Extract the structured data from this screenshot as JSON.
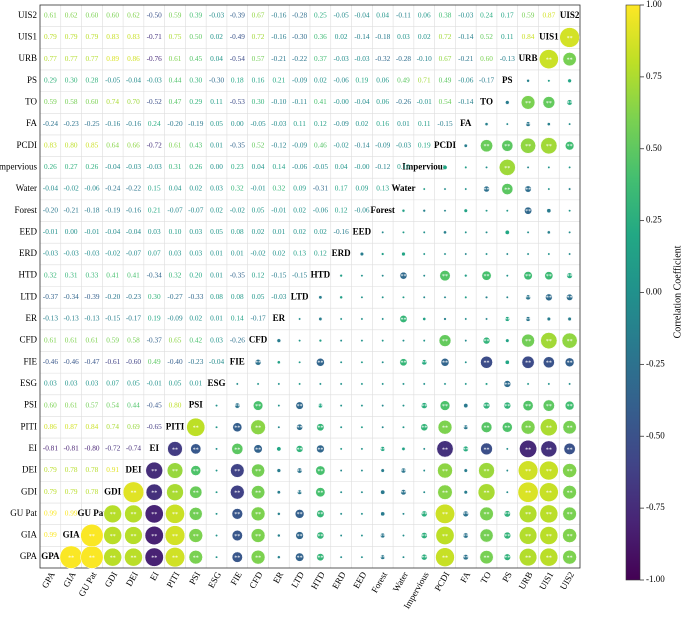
{
  "chart_data": {
    "type": "correlation_matrix",
    "variables": [
      "GPA",
      "GIA",
      "GU Pat",
      "GDI",
      "DEI",
      "EI",
      "PITI",
      "PSI",
      "ESG",
      "FIE",
      "CFD",
      "ER",
      "LTD",
      "HTD",
      "ERD",
      "EED",
      "Forest",
      "Water",
      "Impervious",
      "PCDI",
      "FA",
      "TO",
      "PS",
      "URB",
      "UIS1",
      "UIS2"
    ],
    "rows": [
      [],
      [
        0.99
      ],
      [
        0.99,
        0.99
      ],
      [
        0.79,
        0.79,
        0.78
      ],
      [
        0.79,
        0.78,
        0.78,
        0.91
      ],
      [
        -0.81,
        -0.81,
        -0.8,
        -0.72,
        -0.74
      ],
      [
        0.86,
        0.87,
        0.84,
        0.74,
        0.69,
        -0.65
      ],
      [
        0.6,
        0.61,
        0.57,
        0.54,
        0.44,
        -0.45,
        0.8
      ],
      [
        0.03,
        0.03,
        0.03,
        0.07,
        0.05,
        -0.01,
        0.05,
        0.01
      ],
      [
        -0.46,
        -0.46,
        -0.47,
        -0.61,
        -0.6,
        0.49,
        -0.4,
        -0.23,
        -0.04
      ],
      [
        0.61,
        0.61,
        0.61,
        0.59,
        0.58,
        -0.37,
        0.65,
        0.42,
        0.03,
        -0.26
      ],
      [
        -0.13,
        -0.13,
        -0.13,
        -0.15,
        -0.17,
        0.19,
        -0.09,
        0.02,
        0.01,
        0.14,
        -0.17
      ],
      [
        -0.37,
        -0.34,
        -0.39,
        -0.2,
        -0.23,
        0.3,
        -0.27,
        -0.33,
        0.08,
        0.08,
        0.05,
        -0.03
      ],
      [
        0.32,
        0.31,
        0.33,
        0.41,
        0.41,
        -0.34,
        0.32,
        0.2,
        0.01,
        -0.35,
        0.12,
        -0.15,
        -0.15
      ],
      [
        -0.03,
        -0.03,
        -0.03,
        -0.02,
        -0.07,
        0.07,
        0.03,
        0.03,
        0.01,
        0.01,
        -0.02,
        0.02,
        0.13,
        0.12
      ],
      [
        -0.01,
        0.0,
        -0.01,
        -0.04,
        -0.04,
        0.03,
        0.1,
        0.03,
        0.05,
        0.08,
        0.02,
        0.01,
        0.02,
        0.02,
        -0.16
      ],
      [
        -0.2,
        -0.21,
        -0.18,
        -0.19,
        -0.16,
        0.21,
        -0.07,
        -0.07,
        0.02,
        -0.02,
        0.05,
        -0.01,
        0.02,
        -0.06,
        0.12,
        -0.06
      ],
      [
        -0.04,
        -0.02,
        -0.06,
        -0.24,
        -0.22,
        0.15,
        0.04,
        0.02,
        0.03,
        0.32,
        -0.01,
        0.32,
        0.09,
        -0.31,
        0.17,
        0.09,
        0.13
      ],
      [
        0.26,
        0.27,
        0.26,
        -0.04,
        -0.03,
        -0.03,
        0.31,
        0.26,
        0.0,
        0.23,
        0.04,
        0.14,
        -0.06,
        -0.05,
        0.04,
        0,
        -0.12,
        0.1
      ],
      [
        0.83,
        0.8,
        0.85,
        0.64,
        0.66,
        -0.72,
        0.61,
        0.43,
        0.01,
        -0.35,
        0.52,
        -0.12,
        -0.09,
        0.46,
        -0.02,
        -0.14,
        -0.09,
        -0.03,
        0.19
      ],
      [
        -0.24,
        -0.23,
        -0.25,
        -0.16,
        -0.16,
        0.24,
        -0.2,
        -0.19,
        0.05,
        0.0,
        -0.05,
        -0.03,
        0.11,
        0.12,
        -0.09,
        0.02,
        0.16,
        0.01,
        0.11,
        -0.15
      ],
      [
        0.59,
        0.58,
        0.6,
        0.74,
        0.7,
        -0.52,
        0.47,
        0.29,
        0.11,
        -0.53,
        0.3,
        -0.1,
        -0.11,
        0.41,
        0,
        -0.04,
        0.06,
        -0.26,
        -0.01,
        0.54,
        -0.14
      ],
      [
        0.29,
        0.3,
        0.28,
        -0.05,
        -0.04,
        -0.03,
        0.44,
        0.3,
        -0.3,
        0.18,
        0.16,
        0.21,
        -0.09,
        0.02,
        -0.06,
        0.19,
        0.06,
        0.49,
        0.71,
        0.49,
        -0.06,
        -0.17
      ],
      [
        0.77,
        0.77,
        0.77,
        0.89,
        0.86,
        -0.76,
        0.61,
        0.45,
        0.04,
        -0.54,
        0.57,
        -0.21,
        -0.22,
        0.37,
        -0.03,
        -0.03,
        -0.32,
        -0.28,
        -0.1,
        0.67,
        -0.21,
        0.6,
        -0.13
      ],
      [
        0.79,
        0.79,
        0.79,
        0.83,
        0.83,
        -0.71,
        0.75,
        0.5,
        0.02,
        -0.49,
        0.72,
        -0.16,
        -0.3,
        0.36,
        0.02,
        -0.14,
        -0.18,
        0.03,
        0.02,
        0.72,
        -0.14,
        0.52,
        0.11,
        0.84
      ],
      [
        0.61,
        0.62,
        0.6,
        0.6,
        0.62,
        -0.5,
        0.59,
        0.39,
        -0.03,
        -0.39,
        0.67,
        -0.16,
        -0.28,
        0.25,
        -0.05,
        -0.04,
        0.04,
        -0.11,
        0.06,
        0.38,
        -0.03,
        0.24,
        0.17,
        0.59,
        0.87
      ]
    ],
    "value_labels": [
      [],
      [
        "0.99"
      ],
      [
        "0.99",
        "0.99"
      ],
      [
        "0.79",
        "0.79",
        "0.78"
      ],
      [
        "0.79",
        "0.78",
        "0.78",
        "0.91"
      ],
      [
        "-0.81",
        "-0.81",
        "-0.80",
        "-0.72",
        "-0.74"
      ],
      [
        "0.86",
        "0.87",
        "0.84",
        "0.74",
        "0.69",
        "-0.65"
      ],
      [
        "0.60",
        "0.61",
        "0.57",
        "0.54",
        "0.44",
        "-0.45",
        "0.80"
      ],
      [
        "0.03",
        "0.03",
        "0.03",
        "0.07",
        "0.05",
        "-0.01",
        "0.05",
        "0.01"
      ],
      [
        "-0.46",
        "-0.46",
        "-0.47",
        "-0.61",
        "-0.60",
        "0.49",
        "-0.40",
        "-0.23",
        "-0.04"
      ],
      [
        "0.61",
        "0.61",
        "0.61",
        "0.59",
        "0.58",
        "-0.37",
        "0.65",
        "0.42",
        "0.03",
        "-0.26"
      ],
      [
        "-0.13",
        "-0.13",
        "-0.13",
        "-0.15",
        "-0.17",
        "0.19",
        "-0.09",
        "0.02",
        "0.01",
        "0.14",
        "-0.17"
      ],
      [
        "-0.37",
        "-0.34",
        "-0.39",
        "-0.20",
        "-0.23",
        "0.30",
        "-0.27",
        "-0.33",
        "0.08",
        "0.08",
        "0.05",
        "-0.03"
      ],
      [
        "0.32",
        "0.31",
        "0.33",
        "0.41",
        "0.41",
        "-0.34",
        "0.32",
        "0.20",
        "0.01",
        "-0.35",
        "0.12",
        "-0.15",
        "-0.15"
      ],
      [
        "-0.03",
        "-0.03",
        "-0.03",
        "-0.02",
        "-0.07",
        "0.07",
        "0.03",
        "0.03",
        "0.01",
        "0.01",
        "-0.02",
        "0.02",
        "0.13",
        "0.12"
      ],
      [
        "-0.01",
        "0.00",
        "-0.01",
        "-0.04",
        "-0.04",
        "0.03",
        "0.10",
        "0.03",
        "0.05",
        "0.08",
        "0.02",
        "0.01",
        "0.02",
        "0.02",
        "-0.16"
      ],
      [
        "-0.20",
        "-0.21",
        "-0.18",
        "-0.19",
        "-0.16",
        "0.21",
        "-0.07",
        "-0.07",
        "0.02",
        "-0.02",
        "0.05",
        "-0.01",
        "0.02",
        "-0.06",
        "0.12",
        "-0.06"
      ],
      [
        "-0.04",
        "-0.02",
        "-0.06",
        "-0.24",
        "-0.22",
        "0.15",
        "0.04",
        "0.02",
        "0.03",
        "0.32",
        "-0.01",
        "0.32",
        "0.09",
        "-0.31",
        "0.17",
        "0.09",
        "0.13"
      ],
      [
        "0.26",
        "0.27",
        "0.26",
        "-0.04",
        "-0.03",
        "-0.03",
        "0.31",
        "0.26",
        "0.00",
        "0.23",
        "0.04",
        "0.14",
        "-0.06",
        "-0.05",
        "0.04",
        "-0.00",
        "-0.12",
        "0.10"
      ],
      [
        "0.83",
        "0.80",
        "0.85",
        "0.64",
        "0.66",
        "-0.72",
        "0.61",
        "0.43",
        "0.01",
        "-0.35",
        "0.52",
        "-0.12",
        "-0.09",
        "0.46",
        "-0.02",
        "-0.14",
        "-0.09",
        "-0.03",
        "0.19"
      ],
      [
        "-0.24",
        "-0.23",
        "-0.25",
        "-0.16",
        "-0.16",
        "0.24",
        "-0.20",
        "-0.19",
        "0.05",
        "0.00",
        "-0.05",
        "-0.03",
        "0.11",
        "0.12",
        "-0.09",
        "0.02",
        "0.16",
        "0.01",
        "0.11",
        "-0.15"
      ],
      [
        "0.59",
        "0.58",
        "0.60",
        "0.74",
        "0.70",
        "-0.52",
        "0.47",
        "0.29",
        "0.11",
        "-0.53",
        "0.30",
        "-0.10",
        "-0.11",
        "0.41",
        "-0.00",
        "-0.04",
        "0.06",
        "-0.26",
        "-0.01",
        "0.54",
        "-0.14"
      ],
      [
        "0.29",
        "0.30",
        "0.28",
        "-0.05",
        "-0.04",
        "-0.03",
        "0.44",
        "0.30",
        "-0.30",
        "0.18",
        "0.16",
        "0.21",
        "-0.09",
        "0.02",
        "-0.06",
        "0.19",
        "0.06",
        "0.49",
        "0.71",
        "0.49",
        "-0.06",
        "-0.17"
      ],
      [
        "0.77",
        "0.77",
        "0.77",
        "0.89",
        "0.86",
        "-0.76",
        "0.61",
        "0.45",
        "0.04",
        "-0.54",
        "0.57",
        "-0.21",
        "-0.22",
        "0.37",
        "-0.03",
        "-0.03",
        "-0.32",
        "-0.28",
        "-0.10",
        "0.67",
        "-0.21",
        "0.60",
        "-0.13"
      ],
      [
        "0.79",
        "0.79",
        "0.79",
        "0.83",
        "0.83",
        "-0.71",
        "0.75",
        "0.50",
        "0.02",
        "-0.49",
        "0.72",
        "-0.16",
        "-0.30",
        "0.36",
        "0.02",
        "-0.14",
        "-0.18",
        "0.03",
        "0.02",
        "0.72",
        "-0.14",
        "0.52",
        "0.11",
        "0.84"
      ],
      [
        "0.61",
        "0.62",
        "0.60",
        "0.60",
        "0.62",
        "-0.50",
        "0.59",
        "0.39",
        "-0.03",
        "-0.39",
        "0.67",
        "-0.16",
        "-0.28",
        "0.25",
        "-0.05",
        "-0.04",
        "0.04",
        "-0.11",
        "0.06",
        "0.38",
        "-0.03",
        "0.24",
        "0.17",
        "0.59",
        "0.87"
      ]
    ],
    "significance_label": "**",
    "colorbar": {
      "label": "Correlation Coefficient",
      "lim": [
        -1,
        1
      ],
      "ticks": [
        {
          "value": 1,
          "label": "1.00"
        },
        {
          "value": 0.75,
          "label": "0.75"
        },
        {
          "value": 0.5,
          "label": "0.50"
        },
        {
          "value": 0.25,
          "label": "0.25"
        },
        {
          "value": 0,
          "label": "0.00"
        },
        {
          "value": -0.25,
          "label": "-0.25"
        },
        {
          "value": -0.5,
          "label": "-0.50"
        },
        {
          "value": -0.75,
          "label": "-0.75"
        },
        {
          "value": -1,
          "label": "-1.00"
        }
      ]
    }
  }
}
